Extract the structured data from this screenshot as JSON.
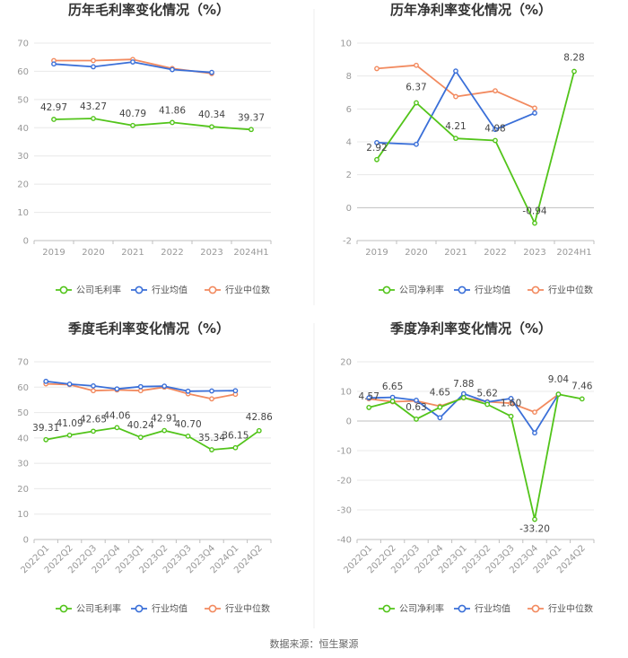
{
  "source": "数据来源：恒生聚源",
  "chart_data": [
    {
      "type": "line",
      "title": "历年毛利率变化情况（%）",
      "categories": [
        "2019",
        "2020",
        "2021",
        "2022",
        "2023",
        "2024H1"
      ],
      "ylim": [
        0,
        70
      ],
      "yticks": [
        0,
        10,
        20,
        30,
        40,
        50,
        60,
        70
      ],
      "series": [
        {
          "name": "公司毛利率",
          "color": "#52c41a",
          "values": [
            42.97,
            43.27,
            40.79,
            41.86,
            40.34,
            39.37
          ],
          "labels": [
            "42.97",
            "43.27",
            "40.79",
            "41.86",
            "40.34",
            "39.37"
          ]
        },
        {
          "name": "行业均值",
          "color": "#3a6fd8",
          "values": [
            62.6,
            61.6,
            63.3,
            60.6,
            59.6,
            null
          ]
        },
        {
          "name": "行业中位数",
          "color": "#f28a5f",
          "values": [
            63.8,
            63.8,
            64.2,
            61.0,
            59.2,
            null
          ]
        }
      ]
    },
    {
      "type": "line",
      "title": "历年净利率变化情况（%）",
      "categories": [
        "2019",
        "2020",
        "2021",
        "2022",
        "2023",
        "2024H1"
      ],
      "ylim": [
        -2,
        10
      ],
      "yticks": [
        -2,
        0,
        2,
        4,
        6,
        8,
        10
      ],
      "series": [
        {
          "name": "公司净利率",
          "color": "#52c41a",
          "values": [
            2.92,
            6.37,
            4.21,
            4.08,
            -0.94,
            8.28
          ],
          "labels": [
            "2.92",
            "6.37",
            "4.21",
            "4.08",
            "-0.94",
            "8.28"
          ]
        },
        {
          "name": "行业均值",
          "color": "#3a6fd8",
          "values": [
            3.95,
            3.85,
            8.3,
            4.75,
            5.75,
            null
          ]
        },
        {
          "name": "行业中位数",
          "color": "#f28a5f",
          "values": [
            8.45,
            8.65,
            6.75,
            7.1,
            6.05,
            null
          ]
        }
      ]
    },
    {
      "type": "line",
      "title": "季度毛利率变化情况（%）",
      "categories": [
        "2022Q1",
        "2022Q2",
        "2022Q3",
        "2022Q4",
        "2023Q1",
        "2023Q2",
        "2023Q3",
        "2023Q4",
        "2024Q1",
        "2024Q2"
      ],
      "ylim": [
        0,
        70
      ],
      "yticks": [
        0,
        10,
        20,
        30,
        40,
        50,
        60,
        70
      ],
      "series": [
        {
          "name": "公司毛利率",
          "color": "#52c41a",
          "values": [
            39.31,
            41.09,
            42.65,
            44.06,
            40.24,
            42.91,
            40.7,
            35.34,
            36.15,
            42.86
          ],
          "labels": [
            "39.31",
            "41.09",
            "42.65",
            "44.06",
            "40.24",
            "42.91",
            "40.70",
            "35.34",
            "36.15",
            "42.86"
          ]
        },
        {
          "name": "行业均值",
          "color": "#3a6fd8",
          "values": [
            62.3,
            61.2,
            60.5,
            59.3,
            60.2,
            60.4,
            58.4,
            58.5,
            58.6,
            null
          ]
        },
        {
          "name": "行业中位数",
          "color": "#f28a5f",
          "values": [
            61.3,
            61.0,
            58.6,
            58.9,
            58.6,
            60.0,
            57.4,
            55.4,
            57.2,
            null
          ]
        }
      ]
    },
    {
      "type": "line",
      "title": "季度净利率变化情况（%）",
      "categories": [
        "2022Q1",
        "2022Q2",
        "2022Q3",
        "2022Q4",
        "2023Q1",
        "2023Q2",
        "2023Q3",
        "2023Q4",
        "2024Q1",
        "2024Q2"
      ],
      "ylim": [
        -40,
        20
      ],
      "yticks": [
        -40,
        -30,
        -20,
        -10,
        0,
        10,
        20
      ],
      "series": [
        {
          "name": "公司净利率",
          "color": "#52c41a",
          "values": [
            4.57,
            6.65,
            0.63,
            4.65,
            7.88,
            5.62,
            1.6,
            -33.2,
            9.04,
            7.46
          ],
          "labels": [
            "4.57",
            "6.65",
            "0.63",
            "4.65",
            "7.88",
            "5.62",
            "1.60",
            "-33.20",
            "9.04",
            "7.46"
          ]
        },
        {
          "name": "行业均值",
          "color": "#3a6fd8",
          "values": [
            7.8,
            8.0,
            7.0,
            1.1,
            9.2,
            6.4,
            7.6,
            -4.0,
            9.0,
            null
          ]
        },
        {
          "name": "行业中位数",
          "color": "#f28a5f",
          "values": [
            7.5,
            6.5,
            6.8,
            5.0,
            7.8,
            6.5,
            6.0,
            3.0,
            9.0,
            null
          ]
        }
      ]
    }
  ]
}
